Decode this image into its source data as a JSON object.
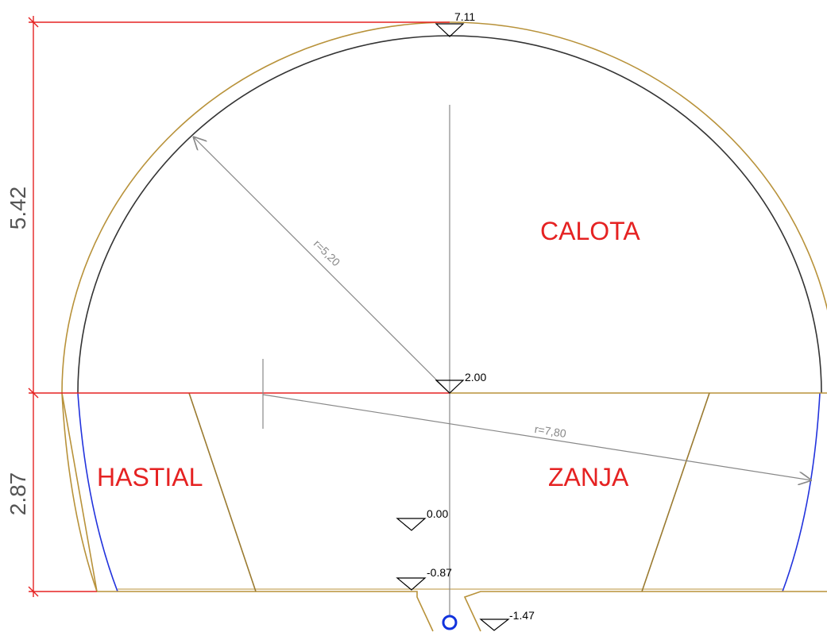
{
  "dimensions": {
    "crown_height": "5.42",
    "bench_height": "2.87"
  },
  "elevations": {
    "crown": "7.11",
    "springline": "2.00",
    "rail": "0.00",
    "invert": "-0.87",
    "trench": "-1.47"
  },
  "radii": {
    "vault": "r=5,20",
    "wall": "r=7,80"
  },
  "regions": {
    "crown": "CALOTA",
    "wall": "HASTIAL",
    "trench": "ZANJA"
  }
}
